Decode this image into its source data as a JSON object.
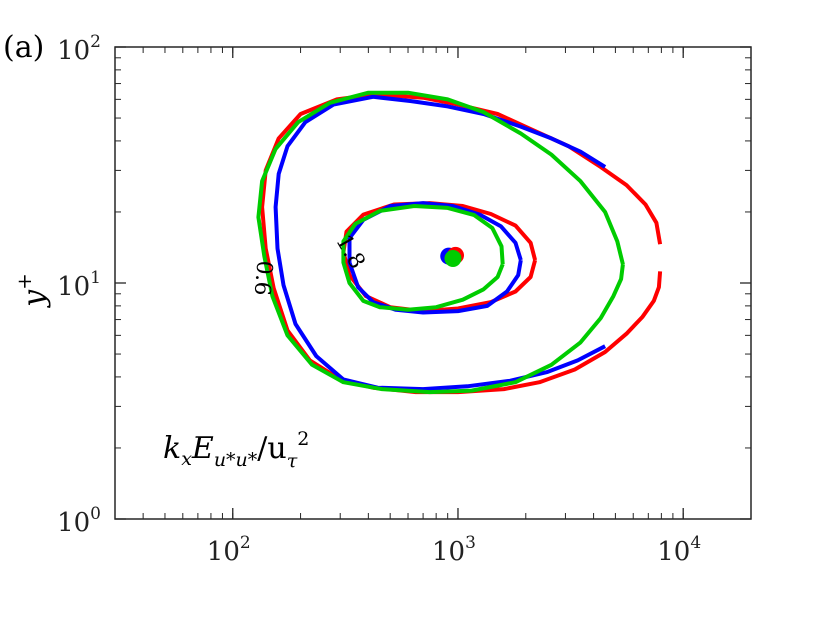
{
  "panel_label": "(a)",
  "annotation": {
    "k": "k",
    "x": "x",
    "E": "E",
    "u_star_u_star": "u*u*",
    "slash_u": "/u",
    "tau": "τ",
    "two": "2"
  },
  "chart_data": {
    "type": "line",
    "title": "",
    "xlabel": "",
    "ylabel": "y+",
    "ylabel_main": "y",
    "ylabel_sup": "+",
    "xscale": "log",
    "yscale": "log",
    "xlim": [
      30,
      20000
    ],
    "ylim": [
      1,
      100
    ],
    "grid": false,
    "x_ticks": [
      {
        "base": "10",
        "exp": "2",
        "value": 100
      },
      {
        "base": "10",
        "exp": "3",
        "value": 1000
      },
      {
        "base": "10",
        "exp": "4",
        "value": 10000
      }
    ],
    "y_ticks": [
      {
        "base": "10",
        "exp": "0",
        "value": 1
      },
      {
        "base": "10",
        "exp": "1",
        "value": 10
      },
      {
        "base": "10",
        "exp": "2",
        "value": 100
      }
    ],
    "contour_labels": [
      {
        "text": "0.6",
        "x": 135,
        "y": 10.5,
        "rotate": 95
      },
      {
        "text": "1.8",
        "x": 330,
        "y": 13.5,
        "rotate": 60
      }
    ],
    "series": [
      {
        "color": "#ff0000",
        "level": "0.6",
        "points": [
          [
            7900,
            14.6
          ],
          [
            7600,
            18
          ],
          [
            6800,
            21.5
          ],
          [
            5600,
            26
          ],
          [
            4300,
            31
          ],
          [
            3100,
            38
          ],
          [
            2200,
            44
          ],
          [
            1500,
            52
          ],
          [
            1000,
            57
          ],
          [
            700,
            61
          ],
          [
            430,
            63
          ],
          [
            290,
            60
          ],
          [
            200,
            52
          ],
          [
            160,
            41
          ],
          [
            140,
            30
          ],
          [
            135,
            21
          ],
          [
            140,
            14
          ],
          [
            152,
            9.5
          ],
          [
            175,
            6.3
          ],
          [
            220,
            4.7
          ],
          [
            300,
            3.9
          ],
          [
            420,
            3.6
          ],
          [
            650,
            3.45
          ],
          [
            1000,
            3.45
          ],
          [
            1600,
            3.55
          ],
          [
            2300,
            3.8
          ],
          [
            3300,
            4.3
          ],
          [
            4500,
            5.1
          ],
          [
            5600,
            6.1
          ],
          [
            6600,
            7.2
          ],
          [
            7400,
            8.4
          ],
          [
            7800,
            9.6
          ],
          [
            7900,
            11.2
          ]
        ]
      },
      {
        "color": "#0000ff",
        "level": "0.6",
        "points": [
          [
            4500,
            31
          ],
          [
            3500,
            36
          ],
          [
            2600,
            41
          ],
          [
            1900,
            46
          ],
          [
            1300,
            52
          ],
          [
            900,
            56
          ],
          [
            620,
            59
          ],
          [
            420,
            61.5
          ],
          [
            280,
            57
          ],
          [
            210,
            48
          ],
          [
            175,
            38
          ],
          [
            160,
            29
          ],
          [
            155,
            21
          ],
          [
            158,
            14
          ],
          [
            168,
            9.8
          ],
          [
            190,
            6.7
          ],
          [
            235,
            4.9
          ],
          [
            310,
            3.9
          ],
          [
            440,
            3.6
          ],
          [
            700,
            3.55
          ],
          [
            1100,
            3.65
          ],
          [
            1700,
            3.85
          ],
          [
            2500,
            4.2
          ],
          [
            3400,
            4.7
          ],
          [
            4500,
            5.4
          ]
        ]
      },
      {
        "color": "#00cc00",
        "level": "0.6",
        "points": [
          [
            5400,
            12
          ],
          [
            5100,
            15
          ],
          [
            4500,
            20
          ],
          [
            3500,
            27
          ],
          [
            2600,
            35
          ],
          [
            1900,
            43
          ],
          [
            1300,
            53
          ],
          [
            900,
            60
          ],
          [
            600,
            64
          ],
          [
            400,
            64
          ],
          [
            270,
            58
          ],
          [
            195,
            48
          ],
          [
            155,
            37
          ],
          [
            135,
            27
          ],
          [
            130,
            19
          ],
          [
            138,
            13
          ],
          [
            150,
            8.8
          ],
          [
            175,
            6
          ],
          [
            225,
            4.5
          ],
          [
            310,
            3.8
          ],
          [
            460,
            3.55
          ],
          [
            750,
            3.45
          ],
          [
            1150,
            3.5
          ],
          [
            1800,
            3.8
          ],
          [
            2600,
            4.5
          ],
          [
            3500,
            5.6
          ],
          [
            4300,
            7.1
          ],
          [
            4900,
            8.8
          ],
          [
            5300,
            10.4
          ],
          [
            5400,
            12
          ]
        ]
      },
      {
        "color": "#ff0000",
        "level": "1.8",
        "points": [
          [
            2200,
            12.5
          ],
          [
            2100,
            14.8
          ],
          [
            1800,
            17.5
          ],
          [
            1400,
            19.6
          ],
          [
            1050,
            21.2
          ],
          [
            750,
            21.8
          ],
          [
            520,
            21.5
          ],
          [
            380,
            19.5
          ],
          [
            320,
            16.5
          ],
          [
            310,
            13.5
          ],
          [
            330,
            10.8
          ],
          [
            390,
            8.8
          ],
          [
            500,
            7.9
          ],
          [
            700,
            7.6
          ],
          [
            1000,
            7.8
          ],
          [
            1400,
            8.3
          ],
          [
            1800,
            9.2
          ],
          [
            2100,
            10.6
          ],
          [
            2200,
            12.5
          ]
        ]
      },
      {
        "color": "#0000ff",
        "level": "1.8",
        "points": [
          [
            1900,
            12.5
          ],
          [
            1800,
            14.8
          ],
          [
            1550,
            17.4
          ],
          [
            1250,
            19.5
          ],
          [
            950,
            21.2
          ],
          [
            700,
            21.8
          ],
          [
            500,
            21.2
          ],
          [
            380,
            18.5
          ],
          [
            330,
            15.5
          ],
          [
            330,
            12.2
          ],
          [
            360,
            9.6
          ],
          [
            420,
            8.3
          ],
          [
            530,
            7.7
          ],
          [
            700,
            7.5
          ],
          [
            1000,
            7.6
          ],
          [
            1350,
            8
          ],
          [
            1650,
            9.2
          ],
          [
            1850,
            10.8
          ],
          [
            1900,
            12.5
          ]
        ]
      },
      {
        "color": "#00cc00",
        "level": "1.8",
        "points": [
          [
            1580,
            12
          ],
          [
            1560,
            14.3
          ],
          [
            1420,
            17.1
          ],
          [
            1180,
            19.4
          ],
          [
            900,
            20.8
          ],
          [
            640,
            21.2
          ],
          [
            450,
            20.2
          ],
          [
            350,
            17.8
          ],
          [
            310,
            15
          ],
          [
            310,
            12.2
          ],
          [
            330,
            10
          ],
          [
            380,
            8.4
          ],
          [
            450,
            7.9
          ],
          [
            600,
            7.7
          ],
          [
            800,
            7.9
          ],
          [
            1050,
            8.5
          ],
          [
            1300,
            9.4
          ],
          [
            1500,
            10.6
          ],
          [
            1580,
            12
          ]
        ]
      }
    ],
    "peaks": [
      {
        "color": "#0000ff",
        "x": 910,
        "y": 13
      },
      {
        "color": "#ff0000",
        "x": 975,
        "y": 13.1
      },
      {
        "color": "#00cc00",
        "x": 950,
        "y": 12.7
      }
    ]
  }
}
